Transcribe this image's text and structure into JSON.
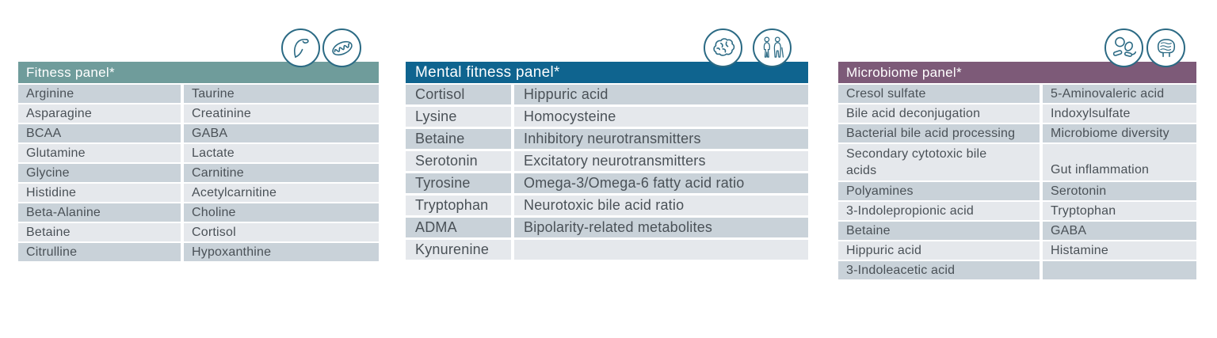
{
  "colors": {
    "row_dark": "#c9d2d9",
    "row_light": "#e5e8ec",
    "row_text": "#4a5157",
    "header_text": "#ffffff",
    "icon_stroke": "#2b6a84"
  },
  "panels": [
    {
      "id": "fitness",
      "title": "Fitness panel*",
      "header_color": "#6f9c9b",
      "icons": [
        "muscle-arm-icon",
        "mitochondria-icon"
      ],
      "rows": [
        {
          "left": "Arginine",
          "right": "Taurine"
        },
        {
          "left": "Asparagine",
          "right": "Creatinine"
        },
        {
          "left": "BCAA",
          "right": "GABA"
        },
        {
          "left": "Glutamine",
          "right": "Lactate"
        },
        {
          "left": "Glycine",
          "right": "Carnitine"
        },
        {
          "left": "Histidine",
          "right": "Acetylcarnitine"
        },
        {
          "left": "Beta-Alanine",
          "right": "Choline"
        },
        {
          "left": "Betaine",
          "right": "Cortisol"
        },
        {
          "left": "Citrulline",
          "right": "Hypoxanthine"
        }
      ]
    },
    {
      "id": "mental-fitness",
      "title": "Mental fitness panel*",
      "header_color": "#0f648f",
      "icons": [
        "brain-icon",
        "aging-people-icon"
      ],
      "rows": [
        {
          "left": "Cortisol",
          "right": "Hippuric acid"
        },
        {
          "left": "Lysine",
          "right": "Homocysteine"
        },
        {
          "left": "Betaine",
          "right": "Inhibitory neurotransmitters"
        },
        {
          "left": "Serotonin",
          "right": "Excitatory neurotransmitters"
        },
        {
          "left": "Tyrosine",
          "right": "Omega-3/Omega-6 fatty acid ratio"
        },
        {
          "left": "Tryptophan",
          "right": "Neurotoxic bile acid ratio"
        },
        {
          "left": "ADMA",
          "right": "Bipolarity-related metabolites"
        },
        {
          "left": "Kynurenine",
          "right": ""
        }
      ]
    },
    {
      "id": "microbiome",
      "title": "Microbiome panel*",
      "header_color": "#7d5a78",
      "icons": [
        "microbes-icon",
        "intestine-icon"
      ],
      "rows": [
        {
          "left": "Cresol sulfate",
          "right": "5-Aminovaleric acid"
        },
        {
          "left": "Bile acid deconjugation",
          "right": "Indoxylsulfate"
        },
        {
          "left": "Bacterial bile acid processing",
          "right": "Microbiome diversity"
        },
        {
          "left": "Secondary cytotoxic bile\nacids",
          "right": "Gut inflammation",
          "tall": true
        },
        {
          "left": "Polyamines",
          "right": "Serotonin"
        },
        {
          "left": "3-Indolepropionic acid",
          "right": "Tryptophan"
        },
        {
          "left": "Betaine",
          "right": "GABA"
        },
        {
          "left": "Hippuric acid",
          "right": "Histamine"
        },
        {
          "left": "3-Indoleacetic acid",
          "right": ""
        }
      ]
    }
  ]
}
